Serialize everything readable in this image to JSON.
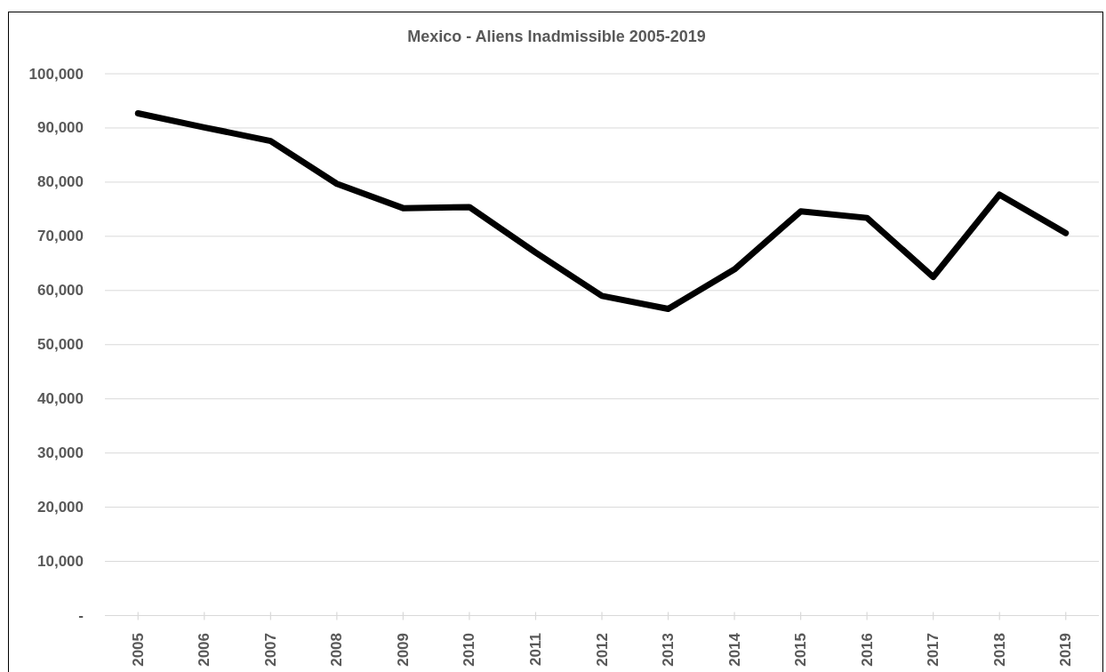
{
  "chart_data": {
    "type": "line",
    "title": "Mexico - Aliens Inadmissible 2005-2019",
    "categories": [
      "2005",
      "2006",
      "2007",
      "2008",
      "2009",
      "2010",
      "2011",
      "2012",
      "2013",
      "2014",
      "2015",
      "2016",
      "2017",
      "2018",
      "2019"
    ],
    "series": [
      {
        "color": "#000000",
        "values": [
          92700,
          90100,
          87600,
          79700,
          75200,
          75400,
          67000,
          59000,
          56600,
          63900,
          74600,
          73400,
          62500,
          77700,
          70600
        ]
      }
    ],
    "ylim": [
      0,
      100000
    ],
    "yticks": [
      {
        "value": 0,
        "label": "-"
      },
      {
        "value": 10000,
        "label": "10,000"
      },
      {
        "value": 20000,
        "label": "20,000"
      },
      {
        "value": 30000,
        "label": "30,000"
      },
      {
        "value": 40000,
        "label": "40,000"
      },
      {
        "value": 50000,
        "label": "50,000"
      },
      {
        "value": 60000,
        "label": "60,000"
      },
      {
        "value": 70000,
        "label": "70,000"
      },
      {
        "value": 80000,
        "label": "80,000"
      },
      {
        "value": 90000,
        "label": "90,000"
      },
      {
        "value": 100000,
        "label": "100,000"
      }
    ],
    "grid": "y"
  }
}
